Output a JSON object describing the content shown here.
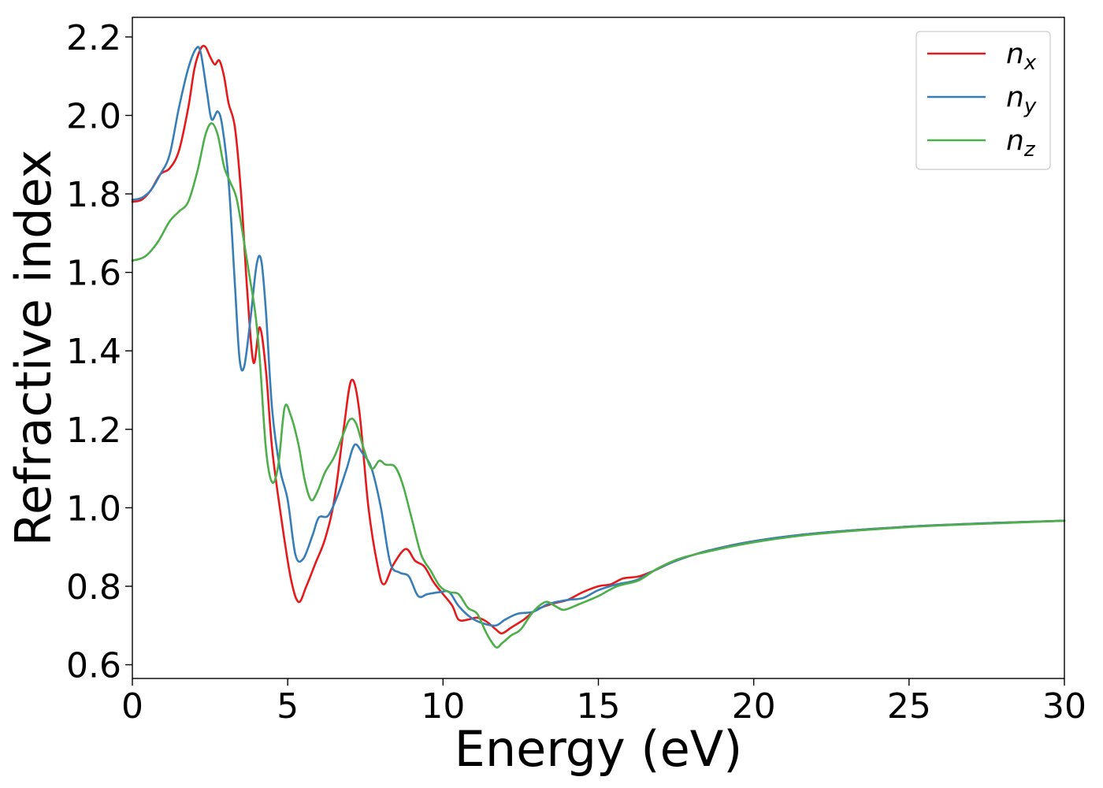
{
  "chart_data": {
    "type": "line",
    "title": "",
    "xlabel": "Energy (eV)",
    "ylabel": "Refractive index",
    "xlim": [
      0,
      30
    ],
    "ylim": [
      0.565,
      2.25
    ],
    "xticks": [
      0,
      5,
      10,
      15,
      20,
      25,
      30
    ],
    "xtick_labels": [
      "0",
      "5",
      "10",
      "15",
      "20",
      "25",
      "30"
    ],
    "yticks": [
      0.6,
      0.8,
      1.0,
      1.2,
      1.4,
      1.6,
      1.8,
      2.0,
      2.2
    ],
    "ytick_labels": [
      "0.6",
      "0.8",
      "1.0",
      "1.2",
      "1.4",
      "1.6",
      "1.8",
      "2.0",
      "2.2"
    ],
    "grid": false,
    "legend_position": "top-right",
    "series": [
      {
        "name": "n",
        "subscript": "x",
        "color": "#e41a1c",
        "points": [
          [
            0,
            1.78
          ],
          [
            0.3,
            1.785
          ],
          [
            0.6,
            1.81
          ],
          [
            0.9,
            1.85
          ],
          [
            1.2,
            1.865
          ],
          [
            1.5,
            1.91
          ],
          [
            1.8,
            2.02
          ],
          [
            2.0,
            2.12
          ],
          [
            2.2,
            2.17
          ],
          [
            2.35,
            2.175
          ],
          [
            2.5,
            2.15
          ],
          [
            2.65,
            2.13
          ],
          [
            2.8,
            2.14
          ],
          [
            2.95,
            2.1
          ],
          [
            3.1,
            2.03
          ],
          [
            3.3,
            1.97
          ],
          [
            3.5,
            1.8
          ],
          [
            3.7,
            1.55
          ],
          [
            3.9,
            1.37
          ],
          [
            4.1,
            1.46
          ],
          [
            4.3,
            1.35
          ],
          [
            4.5,
            1.15
          ],
          [
            4.8,
            0.97
          ],
          [
            5.1,
            0.82
          ],
          [
            5.35,
            0.76
          ],
          [
            5.6,
            0.8
          ],
          [
            5.9,
            0.86
          ],
          [
            6.2,
            0.92
          ],
          [
            6.5,
            1.02
          ],
          [
            6.8,
            1.2
          ],
          [
            7.05,
            1.325
          ],
          [
            7.3,
            1.25
          ],
          [
            7.6,
            1.0
          ],
          [
            7.9,
            0.85
          ],
          [
            8.1,
            0.805
          ],
          [
            8.4,
            0.855
          ],
          [
            8.8,
            0.895
          ],
          [
            9.1,
            0.865
          ],
          [
            9.4,
            0.85
          ],
          [
            9.7,
            0.81
          ],
          [
            10.0,
            0.78
          ],
          [
            10.3,
            0.75
          ],
          [
            10.5,
            0.715
          ],
          [
            10.8,
            0.715
          ],
          [
            11.1,
            0.72
          ],
          [
            11.4,
            0.71
          ],
          [
            11.7,
            0.69
          ],
          [
            11.9,
            0.68
          ],
          [
            12.2,
            0.695
          ],
          [
            12.6,
            0.715
          ],
          [
            13.0,
            0.74
          ],
          [
            13.5,
            0.755
          ],
          [
            14.0,
            0.765
          ],
          [
            14.5,
            0.785
          ],
          [
            15.0,
            0.8
          ],
          [
            15.4,
            0.805
          ],
          [
            15.8,
            0.82
          ],
          [
            16.3,
            0.825
          ],
          [
            16.8,
            0.84
          ],
          [
            17.5,
            0.865
          ],
          [
            18.5,
            0.89
          ],
          [
            20,
            0.915
          ],
          [
            22,
            0.935
          ],
          [
            25,
            0.952
          ],
          [
            28,
            0.962
          ],
          [
            30,
            0.967
          ]
        ]
      },
      {
        "name": "n",
        "subscript": "y",
        "color": "#377eb8",
        "points": [
          [
            0,
            1.785
          ],
          [
            0.3,
            1.79
          ],
          [
            0.6,
            1.81
          ],
          [
            0.9,
            1.85
          ],
          [
            1.2,
            1.9
          ],
          [
            1.5,
            2.02
          ],
          [
            1.8,
            2.12
          ],
          [
            2.05,
            2.17
          ],
          [
            2.2,
            2.16
          ],
          [
            2.4,
            2.06
          ],
          [
            2.55,
            1.99
          ],
          [
            2.75,
            2.01
          ],
          [
            2.9,
            1.97
          ],
          [
            3.1,
            1.83
          ],
          [
            3.3,
            1.57
          ],
          [
            3.45,
            1.38
          ],
          [
            3.6,
            1.36
          ],
          [
            3.8,
            1.48
          ],
          [
            4.0,
            1.62
          ],
          [
            4.15,
            1.63
          ],
          [
            4.3,
            1.5
          ],
          [
            4.5,
            1.25
          ],
          [
            4.75,
            1.1
          ],
          [
            5.0,
            1.02
          ],
          [
            5.25,
            0.88
          ],
          [
            5.5,
            0.87
          ],
          [
            5.8,
            0.93
          ],
          [
            6.0,
            0.975
          ],
          [
            6.3,
            0.98
          ],
          [
            6.6,
            1.03
          ],
          [
            6.9,
            1.1
          ],
          [
            7.15,
            1.16
          ],
          [
            7.4,
            1.14
          ],
          [
            7.7,
            1.1
          ],
          [
            8.0,
            1.0
          ],
          [
            8.3,
            0.86
          ],
          [
            8.6,
            0.835
          ],
          [
            8.9,
            0.825
          ],
          [
            9.2,
            0.775
          ],
          [
            9.5,
            0.78
          ],
          [
            9.9,
            0.785
          ],
          [
            10.2,
            0.785
          ],
          [
            10.5,
            0.75
          ],
          [
            10.9,
            0.72
          ],
          [
            11.3,
            0.705
          ],
          [
            11.7,
            0.7
          ],
          [
            12.0,
            0.715
          ],
          [
            12.4,
            0.73
          ],
          [
            12.9,
            0.735
          ],
          [
            13.4,
            0.755
          ],
          [
            14.0,
            0.765
          ],
          [
            14.5,
            0.77
          ],
          [
            15.0,
            0.79
          ],
          [
            15.6,
            0.805
          ],
          [
            16.2,
            0.815
          ],
          [
            16.8,
            0.84
          ],
          [
            17.5,
            0.865
          ],
          [
            18.5,
            0.89
          ],
          [
            20,
            0.915
          ],
          [
            22,
            0.935
          ],
          [
            25,
            0.952
          ],
          [
            28,
            0.962
          ],
          [
            30,
            0.967
          ]
        ]
      },
      {
        "name": "n",
        "subscript": "z",
        "color": "#4daf4a",
        "points": [
          [
            0,
            1.63
          ],
          [
            0.4,
            1.64
          ],
          [
            0.8,
            1.675
          ],
          [
            1.2,
            1.73
          ],
          [
            1.5,
            1.755
          ],
          [
            1.8,
            1.78
          ],
          [
            2.1,
            1.86
          ],
          [
            2.35,
            1.95
          ],
          [
            2.55,
            1.98
          ],
          [
            2.75,
            1.95
          ],
          [
            2.95,
            1.87
          ],
          [
            3.15,
            1.83
          ],
          [
            3.35,
            1.79
          ],
          [
            3.55,
            1.7
          ],
          [
            3.75,
            1.6
          ],
          [
            3.95,
            1.5
          ],
          [
            4.1,
            1.38
          ],
          [
            4.3,
            1.15
          ],
          [
            4.5,
            1.065
          ],
          [
            4.7,
            1.11
          ],
          [
            4.9,
            1.255
          ],
          [
            5.1,
            1.235
          ],
          [
            5.35,
            1.16
          ],
          [
            5.55,
            1.07
          ],
          [
            5.75,
            1.02
          ],
          [
            5.95,
            1.04
          ],
          [
            6.2,
            1.09
          ],
          [
            6.5,
            1.13
          ],
          [
            6.8,
            1.19
          ],
          [
            7.0,
            1.225
          ],
          [
            7.2,
            1.215
          ],
          [
            7.45,
            1.15
          ],
          [
            7.7,
            1.1
          ],
          [
            7.95,
            1.12
          ],
          [
            8.15,
            1.11
          ],
          [
            8.45,
            1.105
          ],
          [
            8.7,
            1.06
          ],
          [
            9.0,
            0.97
          ],
          [
            9.3,
            0.88
          ],
          [
            9.6,
            0.84
          ],
          [
            9.9,
            0.8
          ],
          [
            10.2,
            0.785
          ],
          [
            10.5,
            0.78
          ],
          [
            10.8,
            0.745
          ],
          [
            11.1,
            0.73
          ],
          [
            11.4,
            0.68
          ],
          [
            11.7,
            0.645
          ],
          [
            11.9,
            0.655
          ],
          [
            12.2,
            0.675
          ],
          [
            12.5,
            0.69
          ],
          [
            12.9,
            0.735
          ],
          [
            13.3,
            0.76
          ],
          [
            13.6,
            0.75
          ],
          [
            13.9,
            0.74
          ],
          [
            14.4,
            0.755
          ],
          [
            15.0,
            0.775
          ],
          [
            15.6,
            0.8
          ],
          [
            16.3,
            0.815
          ],
          [
            16.9,
            0.845
          ],
          [
            17.6,
            0.87
          ],
          [
            18.5,
            0.888
          ],
          [
            20,
            0.912
          ],
          [
            22,
            0.933
          ],
          [
            25,
            0.951
          ],
          [
            28,
            0.961
          ],
          [
            30,
            0.967
          ]
        ]
      }
    ]
  }
}
